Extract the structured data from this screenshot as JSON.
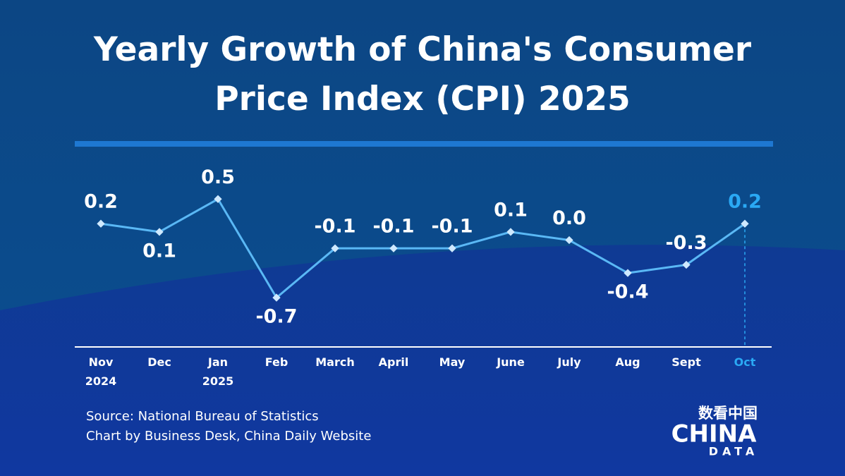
{
  "chart_data": {
    "type": "line",
    "title": "Yearly Growth of China's Consumer Price Index (CPI) 2025",
    "categories": [
      "Nov 2024",
      "Dec",
      "Jan 2025",
      "Feb",
      "March",
      "April",
      "May",
      "June",
      "July",
      "Aug",
      "Sept",
      "Oct"
    ],
    "values": [
      0.2,
      0.1,
      0.5,
      -0.7,
      -0.1,
      -0.1,
      -0.1,
      0.1,
      0.0,
      -0.4,
      -0.3,
      0.2
    ],
    "value_labels": [
      "0.2",
      "0.1",
      "0.5",
      "-0.7",
      "-0.1",
      "-0.1",
      "-0.1",
      "0.1",
      "0.0",
      "-0.4",
      "-0.3",
      "0.2"
    ],
    "color": "#5ab8f5",
    "highlight_color": "#2aa9f4",
    "ylim": [
      -1.3,
      1.0
    ],
    "source": "Source: National Bureau of Statistics",
    "credit": "Chart by Business Desk, China Daily Website",
    "logo": {
      "top": "数看中国",
      "main": "CHINA",
      "sub": "DATA"
    }
  }
}
